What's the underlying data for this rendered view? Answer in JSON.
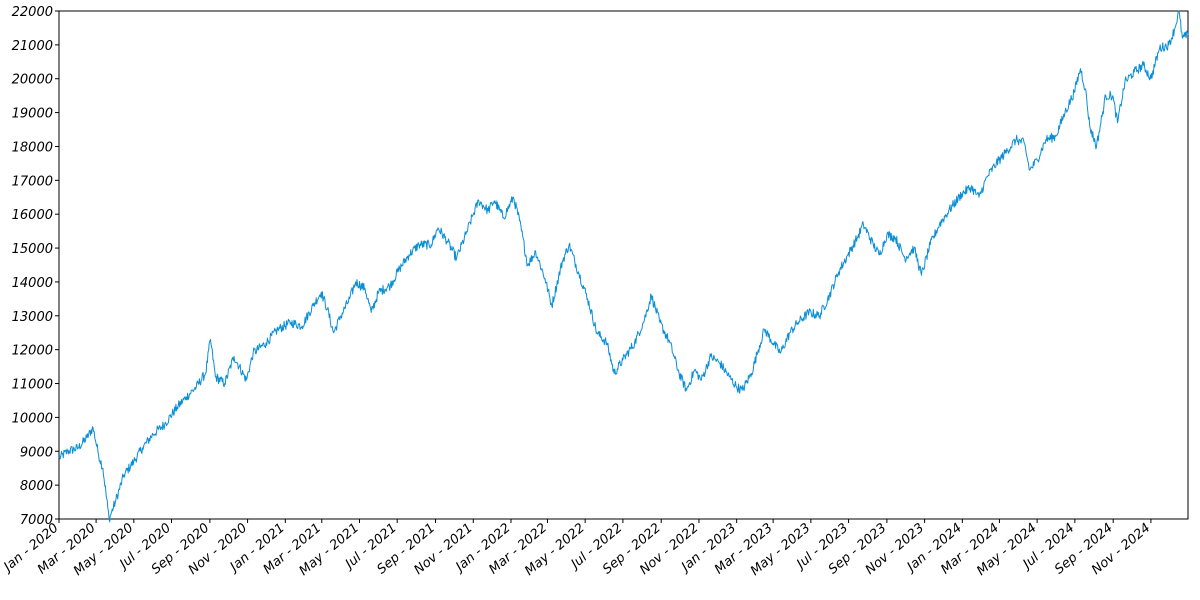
{
  "chart_data": {
    "type": "line",
    "title": "",
    "xlabel": "",
    "ylabel": "",
    "grid": false,
    "legend": "none",
    "line_color": "#0a8fd6",
    "xlim": [
      "2020-01-01",
      "2024-12-31"
    ],
    "ylim": [
      7000,
      22000
    ],
    "y_ticks": [
      7000,
      8000,
      9000,
      10000,
      11000,
      12000,
      13000,
      14000,
      15000,
      16000,
      17000,
      18000,
      19000,
      20000,
      21000,
      22000
    ],
    "x_ticks": [
      {
        "date": "2020-01-01",
        "label": "Jan - 2020"
      },
      {
        "date": "2020-03-01",
        "label": "Mar - 2020"
      },
      {
        "date": "2020-05-01",
        "label": "May - 2020"
      },
      {
        "date": "2020-07-01",
        "label": "Jul - 2020"
      },
      {
        "date": "2020-09-01",
        "label": "Sep - 2020"
      },
      {
        "date": "2020-11-01",
        "label": "Nov - 2020"
      },
      {
        "date": "2021-01-01",
        "label": "Jan - 2021"
      },
      {
        "date": "2021-03-01",
        "label": "Mar - 2021"
      },
      {
        "date": "2021-05-01",
        "label": "May - 2021"
      },
      {
        "date": "2021-07-01",
        "label": "Jul - 2021"
      },
      {
        "date": "2021-09-01",
        "label": "Sep - 2021"
      },
      {
        "date": "2021-11-01",
        "label": "Nov - 2021"
      },
      {
        "date": "2022-01-01",
        "label": "Jan - 2022"
      },
      {
        "date": "2022-03-01",
        "label": "Mar - 2022"
      },
      {
        "date": "2022-05-01",
        "label": "May - 2022"
      },
      {
        "date": "2022-07-01",
        "label": "Jul - 2022"
      },
      {
        "date": "2022-09-01",
        "label": "Sep - 2022"
      },
      {
        "date": "2022-11-01",
        "label": "Nov - 2022"
      },
      {
        "date": "2023-01-01",
        "label": "Jan - 2023"
      },
      {
        "date": "2023-03-01",
        "label": "Mar - 2023"
      },
      {
        "date": "2023-05-01",
        "label": "May - 2023"
      },
      {
        "date": "2023-07-01",
        "label": "Jul - 2023"
      },
      {
        "date": "2023-09-01",
        "label": "Sep - 2023"
      },
      {
        "date": "2023-11-01",
        "label": "Nov - 2023"
      },
      {
        "date": "2024-01-01",
        "label": "Jan - 2024"
      },
      {
        "date": "2024-03-01",
        "label": "Mar - 2024"
      },
      {
        "date": "2024-05-01",
        "label": "May - 2024"
      },
      {
        "date": "2024-07-01",
        "label": "Jul - 2024"
      },
      {
        "date": "2024-09-01",
        "label": "Sep - 2024"
      },
      {
        "date": "2024-11-01",
        "label": "Nov - 2024"
      }
    ],
    "series": [
      {
        "points": [
          [
            "2020-01-01",
            8800
          ],
          [
            "2020-01-15",
            9000
          ],
          [
            "2020-02-01",
            9100
          ],
          [
            "2020-02-15",
            9400
          ],
          [
            "2020-02-25",
            9700
          ],
          [
            "2020-03-05",
            8900
          ],
          [
            "2020-03-12",
            8500
          ],
          [
            "2020-03-22",
            7000
          ],
          [
            "2020-04-01",
            7500
          ],
          [
            "2020-04-15",
            8300
          ],
          [
            "2020-05-01",
            8700
          ],
          [
            "2020-05-15",
            9100
          ],
          [
            "2020-06-01",
            9500
          ],
          [
            "2020-06-20",
            9800
          ],
          [
            "2020-07-10",
            10300
          ],
          [
            "2020-07-25",
            10600
          ],
          [
            "2020-08-10",
            10900
          ],
          [
            "2020-08-25",
            11300
          ],
          [
            "2020-09-02",
            12300
          ],
          [
            "2020-09-10",
            11200
          ],
          [
            "2020-09-25",
            11000
          ],
          [
            "2020-10-10",
            11800
          ],
          [
            "2020-10-30",
            11100
          ],
          [
            "2020-11-10",
            11900
          ],
          [
            "2020-12-01",
            12200
          ],
          [
            "2020-12-20",
            12600
          ],
          [
            "2021-01-10",
            12800
          ],
          [
            "2021-01-28",
            12700
          ],
          [
            "2021-02-15",
            13300
          ],
          [
            "2021-02-28",
            13700
          ],
          [
            "2021-03-10",
            13200
          ],
          [
            "2021-03-20",
            12500
          ],
          [
            "2021-04-01",
            13000
          ],
          [
            "2021-04-15",
            13500
          ],
          [
            "2021-04-25",
            14000
          ],
          [
            "2021-05-10",
            13800
          ],
          [
            "2021-05-20",
            13100
          ],
          [
            "2021-06-01",
            13700
          ],
          [
            "2021-06-20",
            13900
          ],
          [
            "2021-07-05",
            14400
          ],
          [
            "2021-07-20",
            14800
          ],
          [
            "2021-08-05",
            15100
          ],
          [
            "2021-08-25",
            15100
          ],
          [
            "2021-09-05",
            15600
          ],
          [
            "2021-09-20",
            15200
          ],
          [
            "2021-10-05",
            14700
          ],
          [
            "2021-10-20",
            15400
          ],
          [
            "2021-11-01",
            16000
          ],
          [
            "2021-11-10",
            16400
          ],
          [
            "2021-11-25",
            16100
          ],
          [
            "2021-12-05",
            16400
          ],
          [
            "2021-12-20",
            15900
          ],
          [
            "2022-01-05",
            16500
          ],
          [
            "2022-01-15",
            15800
          ],
          [
            "2022-01-28",
            14500
          ],
          [
            "2022-02-10",
            14900
          ],
          [
            "2022-02-25",
            14100
          ],
          [
            "2022-03-08",
            13300
          ],
          [
            "2022-03-25",
            14600
          ],
          [
            "2022-04-05",
            15100
          ],
          [
            "2022-04-20",
            14300
          ],
          [
            "2022-05-05",
            13500
          ],
          [
            "2022-05-20",
            12500
          ],
          [
            "2022-06-05",
            12200
          ],
          [
            "2022-06-17",
            11300
          ],
          [
            "2022-07-01",
            11700
          ],
          [
            "2022-07-20",
            12200
          ],
          [
            "2022-08-05",
            12900
          ],
          [
            "2022-08-16",
            13600
          ],
          [
            "2022-08-30",
            12800
          ],
          [
            "2022-09-15",
            12200
          ],
          [
            "2022-09-30",
            11300
          ],
          [
            "2022-10-12",
            10800
          ],
          [
            "2022-10-25",
            11400
          ],
          [
            "2022-11-05",
            11100
          ],
          [
            "2022-11-20",
            11800
          ],
          [
            "2022-12-05",
            11600
          ],
          [
            "2022-12-20",
            11200
          ],
          [
            "2023-01-01",
            10900
          ],
          [
            "2023-01-10",
            10800
          ],
          [
            "2023-01-25",
            11300
          ],
          [
            "2023-02-05",
            12000
          ],
          [
            "2023-02-15",
            12600
          ],
          [
            "2023-03-01",
            12200
          ],
          [
            "2023-03-13",
            11900
          ],
          [
            "2023-03-28",
            12500
          ],
          [
            "2023-04-10",
            12800
          ],
          [
            "2023-04-28",
            13100
          ],
          [
            "2023-05-15",
            13000
          ],
          [
            "2023-05-31",
            13600
          ],
          [
            "2023-06-15",
            14300
          ],
          [
            "2023-06-30",
            14800
          ],
          [
            "2023-07-15",
            15300
          ],
          [
            "2023-07-25",
            15700
          ],
          [
            "2023-08-10",
            15100
          ],
          [
            "2023-08-20",
            14800
          ],
          [
            "2023-09-01",
            15400
          ],
          [
            "2023-09-15",
            15300
          ],
          [
            "2023-09-30",
            14700
          ],
          [
            "2023-10-15",
            15000
          ],
          [
            "2023-10-27",
            14200
          ],
          [
            "2023-11-10",
            15100
          ],
          [
            "2023-11-25",
            15700
          ],
          [
            "2023-12-10",
            16100
          ],
          [
            "2023-12-31",
            16600
          ],
          [
            "2024-01-15",
            16800
          ],
          [
            "2024-01-28",
            16500
          ],
          [
            "2024-02-10",
            17100
          ],
          [
            "2024-02-25",
            17500
          ],
          [
            "2024-03-10",
            17800
          ],
          [
            "2024-03-28",
            18200
          ],
          [
            "2024-04-10",
            18100
          ],
          [
            "2024-04-19",
            17300
          ],
          [
            "2024-05-01",
            17600
          ],
          [
            "2024-05-15",
            18200
          ],
          [
            "2024-05-31",
            18300
          ],
          [
            "2024-06-15",
            19000
          ],
          [
            "2024-06-30",
            19600
          ],
          [
            "2024-07-10",
            20300
          ],
          [
            "2024-07-18",
            19700
          ],
          [
            "2024-07-25",
            18600
          ],
          [
            "2024-08-05",
            18000
          ],
          [
            "2024-08-20",
            19500
          ],
          [
            "2024-08-31",
            19500
          ],
          [
            "2024-09-08",
            18700
          ],
          [
            "2024-09-20",
            19900
          ],
          [
            "2024-10-05",
            20200
          ],
          [
            "2024-10-20",
            20400
          ],
          [
            "2024-11-01",
            20000
          ],
          [
            "2024-11-15",
            20900
          ],
          [
            "2024-11-30",
            21000
          ],
          [
            "2024-12-10",
            21500
          ],
          [
            "2024-12-16",
            22000
          ],
          [
            "2024-12-22",
            21200
          ],
          [
            "2024-12-31",
            21300
          ]
        ]
      }
    ]
  }
}
